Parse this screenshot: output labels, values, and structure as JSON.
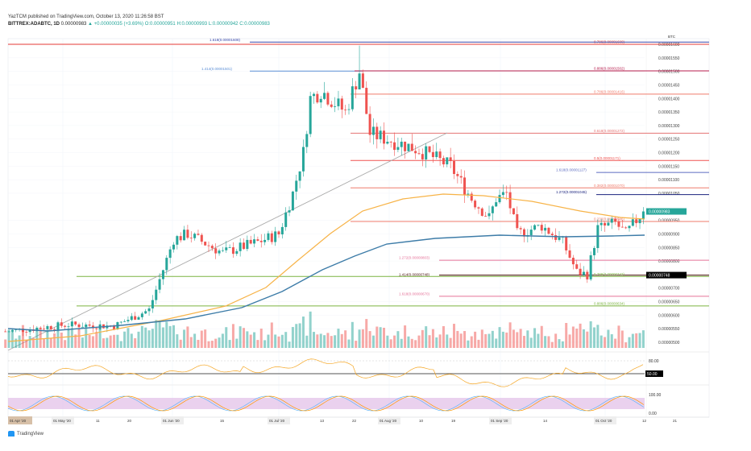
{
  "header": {
    "publisher": "YazTCM published on TradingView.com, October 13, 2020 11:26:58 BST",
    "symbol": "BITTREX:ADABTC, 1D",
    "last": "0.00000983",
    "change": "▲ +0.00000035 (+3.69%)",
    "o": "O:0.00000951",
    "h": "H:0.00000993",
    "l": "L:0.00000942",
    "c": "C:0.00000983"
  },
  "brand": "TradingView",
  "chart_data": {
    "type": "candlestick",
    "title": "BITTREX:ADABTC, 1D",
    "currency": "BTC",
    "ylim": [
      5e-06,
      1.6e-05
    ],
    "y_ticks": [
      "0.00001600",
      "0.00001550",
      "0.00001500",
      "0.00001450",
      "0.00001400",
      "0.00001350",
      "0.00001300",
      "0.00001250",
      "0.00001200",
      "0.00001150",
      "0.00001100",
      "0.00001050",
      "0.00000950",
      "0.00000900",
      "0.00000850",
      "0.00000800",
      "0.00000700",
      "0.00000650",
      "0.00000600",
      "0.00000550",
      "0.00000500"
    ],
    "x_ticks": [
      "01 May '20",
      "11",
      "20",
      "01 Jun '20",
      "15",
      "01 Jul '20",
      "13",
      "22",
      "01 Aug '20",
      "10",
      "19",
      "01 Sep '20",
      "14",
      "01 Oct '20",
      "12",
      "21"
    ],
    "crosshair_date": "01 Apr '20",
    "close_keyframes_day_from_jul1": [
      -78,
      -60,
      -47,
      -37,
      -30,
      -26,
      -16,
      -6,
      0,
      4,
      7,
      9,
      12,
      19,
      23,
      26,
      31,
      40,
      49,
      55,
      60,
      62,
      65,
      68,
      75,
      81,
      85,
      88,
      91,
      96,
      99,
      104
    ],
    "close_keyframes_sats": [
      540,
      565,
      560,
      620,
      880,
      900,
      830,
      870,
      900,
      1050,
      1200,
      1400,
      1430,
      1350,
      1500,
      1270,
      1250,
      1210,
      1150,
      1030,
      960,
      1030,
      1050,
      900,
      930,
      870,
      760,
      750,
      920,
      940,
      900,
      983
    ],
    "price_tags": [
      {
        "label": "0.00000983",
        "color": "#26a69a"
      },
      {
        "label": "0.00000748",
        "color": "#000000"
      }
    ],
    "fib_levels": [
      {
        "price": 1600,
        "label": "0.786(0.00001600)",
        "color": "#e53935"
      },
      {
        "price": 1608,
        "label": "1.618(0.00001608)",
        "color": "#3949ab"
      },
      {
        "price": 1501,
        "label": "1.414(0.00001501)",
        "color": "#5c8fd6"
      },
      {
        "price": 1502,
        "label": "0.886(0.00001502)",
        "color": "#b71c4c"
      },
      {
        "price": 1416,
        "label": "0.786(0.00001416)",
        "color": "#ef7b6b"
      },
      {
        "price": 1272,
        "label": "0.618(0.00001272)",
        "color": "#e57373"
      },
      {
        "price": 1171,
        "label": "0.5(0.00001171)",
        "color": "#ef5350"
      },
      {
        "price": 1127,
        "label": "1.618(0.00001127)",
        "color": "#5c6bc0"
      },
      {
        "price": 1070,
        "label": "0.382(0.00001070)",
        "color": "#ef7b6b"
      },
      {
        "price": 1045,
        "label": "1.272(0.00001045)",
        "color": "#1a237e"
      },
      {
        "price": 946,
        "label": "0.236(0.00000946)",
        "color": "#ef7b6b"
      },
      {
        "price": 803,
        "label": "1.272(0.00000803)",
        "color": "#e57399"
      },
      {
        "price": 748,
        "label": "1.414(0.00000748)",
        "color": "#4a1010"
      },
      {
        "price": 743,
        "label": "0.786(0.00000743)",
        "color": "#7cb342"
      },
      {
        "price": 670,
        "label": "1.618(0.00000670)",
        "color": "#e57399"
      },
      {
        "price": 634,
        "label": "0.886(0.00000634)",
        "color": "#7cb342"
      }
    ],
    "rsi": {
      "levels": [
        "80.00",
        "50.00"
      ]
    },
    "stoch_rsi": {
      "levels": [
        "100.00",
        "0.00"
      ]
    },
    "colors": {
      "up": "#26a69a",
      "down": "#ef5350",
      "ma_fast": "#f7b347",
      "ma_slow": "#3d7ca8"
    }
  }
}
